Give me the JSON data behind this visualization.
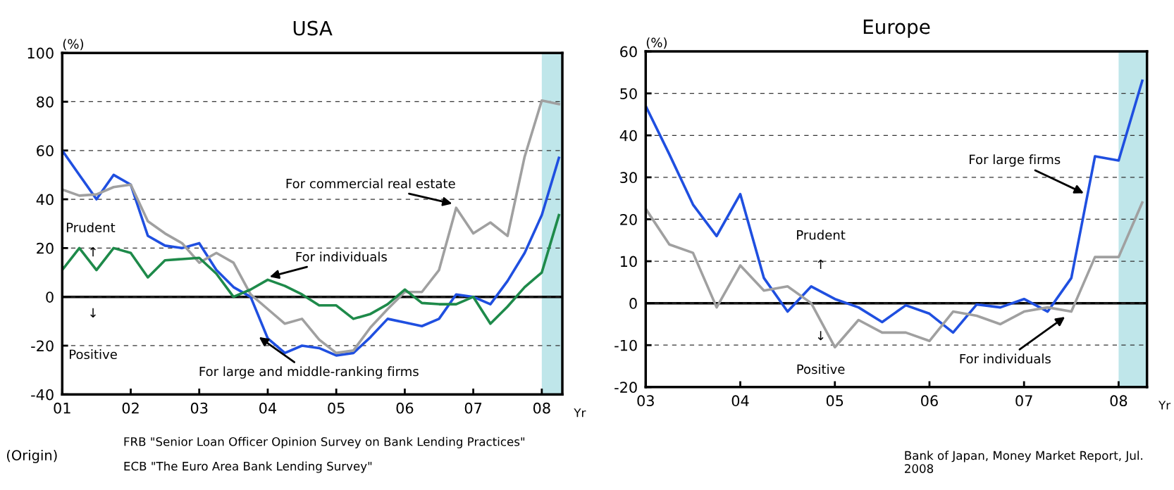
{
  "chart_data": [
    {
      "type": "line",
      "title": "USA",
      "ylabel": "(%)",
      "xlabel": "Yr",
      "x": [
        2001.0,
        2001.25,
        2001.5,
        2001.75,
        2002.0,
        2002.25,
        2002.5,
        2002.75,
        2003.0,
        2003.25,
        2003.5,
        2003.75,
        2004.0,
        2004.25,
        2004.5,
        2004.75,
        2005.0,
        2005.25,
        2005.5,
        2005.75,
        2006.0,
        2006.25,
        2006.5,
        2006.75,
        2007.0,
        2007.25,
        2007.5,
        2007.75,
        2008.0,
        2008.25
      ],
      "series": [
        {
          "name": "For large and middle-ranking firms",
          "color": "#1f4fe0",
          "values": [
            60,
            50,
            40,
            50,
            46,
            25,
            21,
            20,
            22,
            11,
            4,
            0,
            -17,
            -23,
            -20,
            -21,
            -24,
            -23,
            -16.5,
            -9,
            -10.5,
            -12,
            -9,
            1,
            0,
            -3,
            6.5,
            18,
            33.5,
            57
          ]
        },
        {
          "name": "For commercial real estate",
          "color": "#a0a0a0",
          "values": [
            44,
            41.5,
            42,
            45,
            46,
            31,
            26,
            22,
            14,
            18,
            14,
            1,
            -5,
            -11,
            -9,
            -17.5,
            -23,
            -22,
            -12.5,
            -5,
            2,
            2,
            11,
            36.5,
            26,
            30.5,
            25,
            57.5,
            80.5,
            79
          ]
        },
        {
          "name": "For individuals",
          "color": "#1e8a4a",
          "values": [
            11,
            20,
            11,
            20,
            18,
            8,
            15,
            15.5,
            16,
            9.5,
            0,
            3,
            7,
            4.5,
            1,
            -3.5,
            -3.5,
            -9,
            -7,
            -3,
            3,
            -2.5,
            -3,
            -3,
            0,
            -11,
            -4,
            4,
            10,
            33.5
          ]
        }
      ],
      "xlim": [
        2001,
        2008.3
      ],
      "xticks": [
        {
          "value": 2001,
          "label": "01"
        },
        {
          "value": 2002,
          "label": "02"
        },
        {
          "value": 2003,
          "label": "03"
        },
        {
          "value": 2004,
          "label": "04"
        },
        {
          "value": 2005,
          "label": "05"
        },
        {
          "value": 2006,
          "label": "06"
        },
        {
          "value": 2007,
          "label": "07"
        },
        {
          "value": 2008,
          "label": "08"
        }
      ],
      "ylim": [
        -40,
        100
      ],
      "yticks": [
        -40,
        -20,
        0,
        20,
        40,
        60,
        80,
        100
      ],
      "grid": "y",
      "line_style": "solid",
      "marker": "none",
      "ref_lines": [
        {
          "axis": "y",
          "value": 0,
          "color": "#000000",
          "line_style": "solid"
        }
      ],
      "bands": [
        {
          "axis": "x",
          "from": 2008,
          "to": 2008.3,
          "color": "#bfe6ea"
        }
      ],
      "annotations": [
        "Prudent",
        "↑",
        "↓",
        "Positive",
        "(Origin)",
        "FRB \"Senior Loan Officer Opinion Survey on Bank Lending Practices\"",
        "ECB \"The Euro Area Bank Lending Survey\""
      ]
    },
    {
      "type": "line",
      "title": "Europe",
      "ylabel": "(%)",
      "xlabel": "Yr",
      "x": [
        2003.0,
        2003.25,
        2003.5,
        2003.75,
        2004.0,
        2004.25,
        2004.5,
        2004.75,
        2005.0,
        2005.25,
        2005.5,
        2005.75,
        2006.0,
        2006.25,
        2006.5,
        2006.75,
        2007.0,
        2007.25,
        2007.5,
        2007.75,
        2008.0,
        2008.25
      ],
      "series": [
        {
          "name": "For large firms",
          "color": "#1f4fe0",
          "values": [
            47,
            35.5,
            23.5,
            16,
            26,
            6,
            -2,
            4,
            1,
            -1,
            -4.5,
            -0.5,
            -2.5,
            -7,
            -0.3,
            -1,
            1,
            -2,
            6,
            35,
            34,
            53
          ]
        },
        {
          "name": "For individuals",
          "color": "#a0a0a0",
          "values": [
            22.5,
            14,
            12,
            -1,
            9,
            3,
            4,
            0,
            -10.5,
            -4,
            -7,
            -7,
            -9,
            -2,
            -3,
            -5,
            -2,
            -1,
            -2,
            11,
            11,
            24
          ]
        }
      ],
      "xlim": [
        2003,
        2008.3
      ],
      "xticks": [
        {
          "value": 2003,
          "label": "03"
        },
        {
          "value": 2004,
          "label": "04"
        },
        {
          "value": 2005,
          "label": "05"
        },
        {
          "value": 2006,
          "label": "06"
        },
        {
          "value": 2007,
          "label": "07"
        },
        {
          "value": 2008,
          "label": "08"
        }
      ],
      "ylim": [
        -20,
        60
      ],
      "yticks": [
        -20,
        -10,
        0,
        10,
        20,
        30,
        40,
        50,
        60
      ],
      "grid": "y",
      "line_style": "solid",
      "marker": "none",
      "ref_lines": [
        {
          "axis": "y",
          "value": 0,
          "color": "#000000",
          "line_style": "solid"
        }
      ],
      "bands": [
        {
          "axis": "x",
          "from": 2008,
          "to": 2008.3,
          "color": "#bfe6ea"
        }
      ],
      "annotations": [
        "Prudent",
        "↑",
        "↓",
        "Positive",
        "Bank of Japan, Money Market Report, Jul. 2008"
      ]
    }
  ]
}
